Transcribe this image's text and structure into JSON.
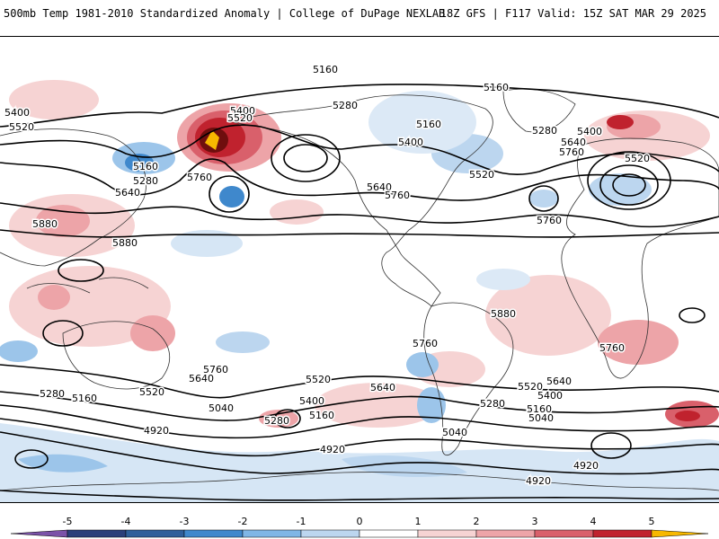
{
  "header": {
    "left_title": "500mb Temp 1981-2010 Standardized Anomaly | College of DuPage NEXLAB",
    "right_title": "18Z GFS | F117 Valid: 15Z SAT MAR 29 2025"
  },
  "map": {
    "contour_labels": [
      "5160",
      "5400",
      "5520",
      "5160",
      "5280",
      "5640",
      "5880",
      "5880",
      "5400",
      "5520",
      "5760",
      "5280",
      "5160",
      "5400",
      "5640",
      "5760",
      "5520",
      "5760",
      "5280",
      "5400",
      "5640",
      "5760",
      "5520",
      "5160",
      "5880",
      "5760",
      "5640",
      "5760",
      "5520",
      "5640",
      "5400",
      "5520",
      "5280",
      "5160",
      "5040",
      "4920",
      "5280",
      "5160",
      "5040",
      "5640",
      "5520",
      "5400",
      "5280",
      "5160",
      "5040",
      "4920",
      "4920",
      "4920",
      "5760"
    ]
  },
  "colorbar": {
    "ticks": [
      "-5",
      "-4",
      "-3",
      "-2",
      "-1",
      "0",
      "1",
      "2",
      "3",
      "4",
      "5"
    ],
    "colors": [
      "#7b52a8",
      "#2b3f7a",
      "#2f5f9a",
      "#3f88cc",
      "#7fb6e6",
      "#bcd6ef",
      "#ffffff",
      "#f6d3d3",
      "#eda4a8",
      "#d9606b",
      "#c0222e",
      "#6f0e0e",
      "#f7b800"
    ]
  }
}
